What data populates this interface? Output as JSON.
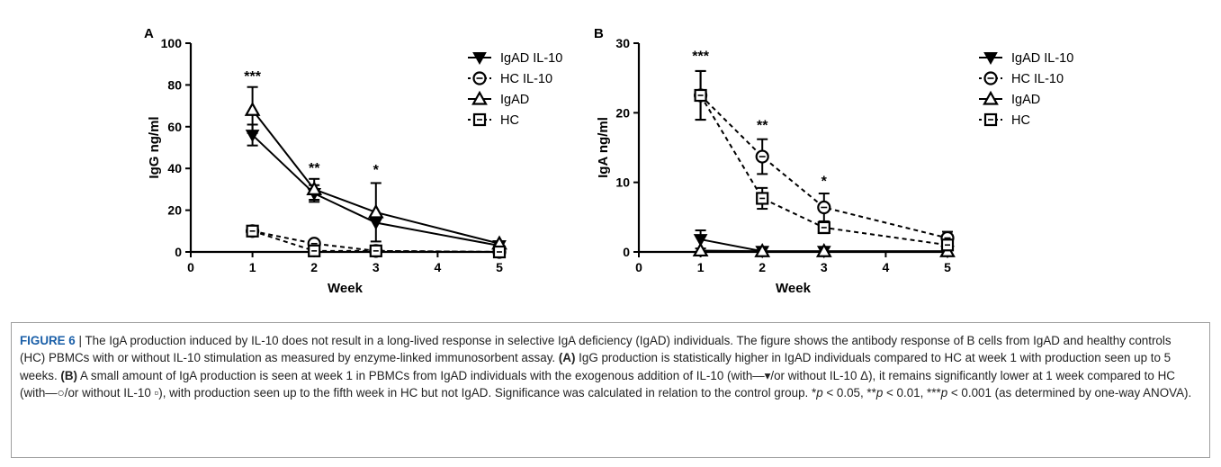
{
  "chart_data": [
    {
      "panel": "A",
      "type": "line",
      "ylabel": "IgG ng/ml",
      "xlabel": "Week",
      "xlim": [
        0,
        5
      ],
      "ylim": [
        0,
        100
      ],
      "x_ticks": [
        "0",
        "1",
        "2",
        "3",
        "4",
        "5"
      ],
      "y_ticks": [
        "0",
        "20",
        "40",
        "60",
        "80",
        "100"
      ],
      "legend_position": "top-right",
      "x": [
        1,
        2,
        3,
        5
      ],
      "series": [
        {
          "name": "IgAD IL-10",
          "marker": "triangle-down",
          "line": "solid",
          "values": [
            56,
            28,
            14,
            3
          ],
          "err": [
            5,
            4,
            0,
            0
          ]
        },
        {
          "name": "HC IL-10",
          "marker": "circle",
          "line": "dashed",
          "values": [
            10,
            4,
            0.5,
            0
          ],
          "err": [
            1,
            0,
            0,
            0
          ]
        },
        {
          "name": "IgAD",
          "marker": "triangle-up",
          "line": "solid",
          "values": [
            68,
            30,
            19,
            4
          ],
          "err": [
            11,
            5,
            14,
            0
          ]
        },
        {
          "name": "HC",
          "marker": "square",
          "line": "dashed",
          "values": [
            10,
            0.5,
            0.5,
            0
          ],
          "err": [
            1,
            0,
            0,
            0
          ]
        }
      ],
      "annotations": [
        {
          "x": 1,
          "y": 82,
          "text": "***"
        },
        {
          "x": 2,
          "y": 38,
          "text": "**"
        },
        {
          "x": 3,
          "y": 37,
          "text": "*"
        }
      ]
    },
    {
      "panel": "B",
      "type": "line",
      "ylabel": "IgA ng/ml",
      "xlabel": "Week",
      "xlim": [
        0,
        5
      ],
      "ylim": [
        0,
        30
      ],
      "x_ticks": [
        "0",
        "1",
        "2",
        "3",
        "4",
        "5"
      ],
      "y_ticks": [
        "0",
        "10",
        "20",
        "30"
      ],
      "legend_position": "top-right",
      "x": [
        1,
        2,
        3,
        5
      ],
      "series": [
        {
          "name": "IgAD IL-10",
          "marker": "triangle-down",
          "line": "solid",
          "values": [
            1.8,
            0.1,
            0.1,
            0.1
          ],
          "err": [
            1.3,
            0,
            0,
            0
          ]
        },
        {
          "name": "HC IL-10",
          "marker": "circle",
          "line": "dashed",
          "values": [
            22.5,
            13.7,
            6.4,
            2.0
          ],
          "err": [
            3.5,
            2.5,
            2.0,
            0.9
          ]
        },
        {
          "name": "IgAD",
          "marker": "triangle-up",
          "line": "solid",
          "values": [
            0.2,
            0.1,
            0.1,
            0.1
          ],
          "err": [
            0,
            0,
            0,
            0
          ]
        },
        {
          "name": "HC",
          "marker": "square",
          "line": "dashed",
          "values": [
            22.5,
            7.7,
            3.5,
            1.0
          ],
          "err": [
            3.5,
            1.5,
            0.8,
            0.5
          ]
        }
      ],
      "annotations": [
        {
          "x": 1,
          "y": 27.5,
          "text": "***"
        },
        {
          "x": 2,
          "y": 17.5,
          "text": "**"
        },
        {
          "x": 3,
          "y": 9.5,
          "text": "*"
        }
      ]
    }
  ],
  "caption": {
    "label": "FIGURE 6",
    "sep": " | ",
    "s1": "The IgA production induced by IL-10 does not result in a long-lived response in selective IgA deficiency (IgAD) individuals. The figure shows the antibody response of B cells from IgAD and healthy controls (HC) PBMCs with or without IL-10 stimulation as measured by enzyme-linked immunosorbent assay. ",
    "a_label": "(A)",
    "s2": " IgG production is statistically higher in IgAD individuals compared to HC at week 1 with production seen up to 5 weeks. ",
    "b_label": "(B)",
    "s3": " A small amount of IgA production is seen at week 1 in PBMCs from IgAD individuals with the exogenous addition of IL-10 (with—▾/or without IL-10 Δ), it remains significantly lower at 1 week compared to HC (with—○/or without IL-10 ▫), with production seen up to the fifth week in HC but not IgAD. Significance was calculated in relation to the control group. *",
    "p1": "p",
    "s4": " < 0.05, **",
    "p2": "p",
    "s5": " < 0.01, ***",
    "p3": "p",
    "s6": " < 0.001 (as determined by one-way ANOVA)."
  }
}
